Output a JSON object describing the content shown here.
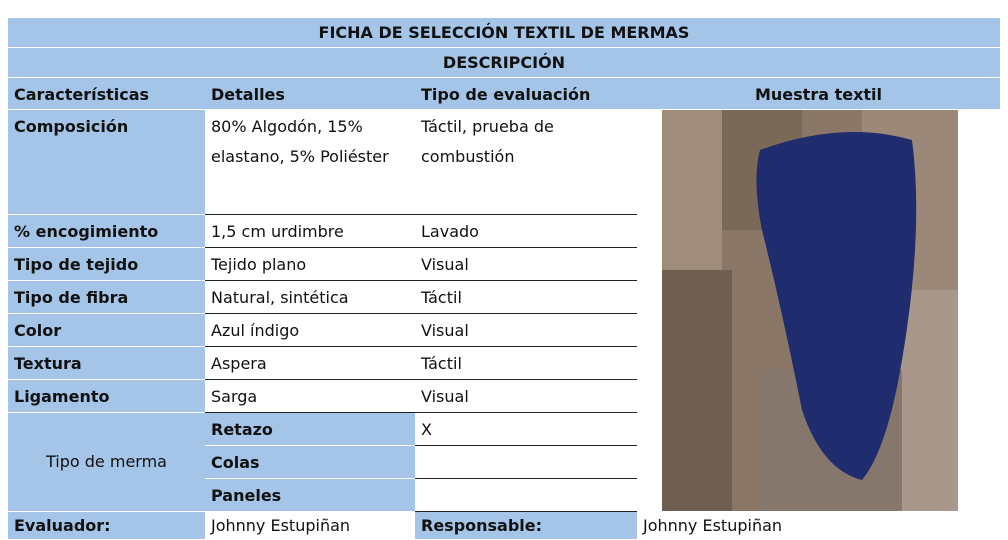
{
  "header": {
    "title": "FICHA DE SELECCIÓN TEXTIL DE MERMAS",
    "subtitle": "DESCRIPCIÓN"
  },
  "table": {
    "columns": [
      "Características",
      "Detalles",
      "Tipo de evaluación",
      "Muestra textil"
    ],
    "rows": [
      [
        "Composición",
        "80% Algodón, 15% elastano, 5% Poliéster",
        "Táctil, prueba de combustión"
      ],
      [
        "% encogimiento",
        "1,5 cm urdimbre",
        "Lavado"
      ],
      [
        "Tipo de tejido",
        "Tejido plano",
        "Visual"
      ],
      [
        "Tipo de fibra",
        "Natural, sintética",
        "Táctil"
      ],
      [
        "Color",
        "Azul índigo",
        "Visual"
      ],
      [
        "Textura",
        "Aspera",
        "Táctil"
      ],
      [
        "Ligamento",
        "Sarga",
        "Visual"
      ]
    ],
    "merma": {
      "label": "Tipo de merma",
      "options": [
        [
          "Retazo",
          "X"
        ],
        [
          "Colas"
        ],
        [
          "Paneles"
        ]
      ]
    },
    "footer": [
      "Evaluador:",
      "Johnny Estupiñan",
      "Responsable:",
      "Johnny Estupiñan"
    ]
  }
}
